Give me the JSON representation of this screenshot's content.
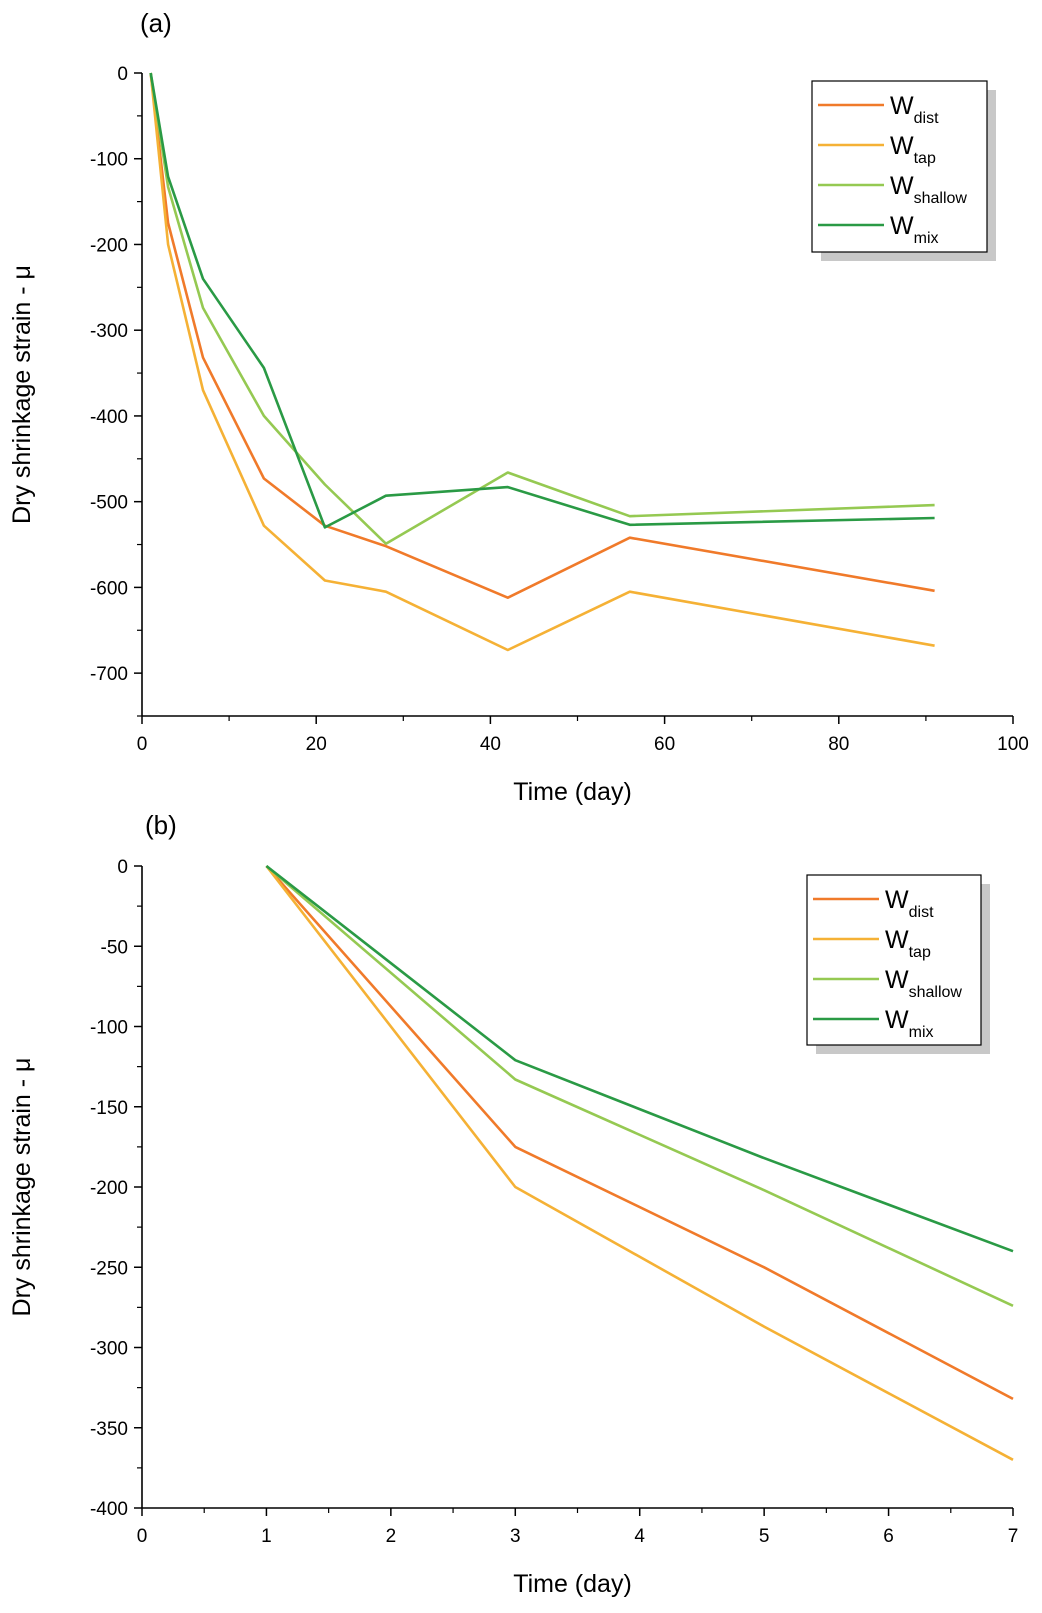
{
  "colors": {
    "W_dist": "#f07a2a",
    "W_tap": "#f5b135",
    "W_shallow": "#95c952",
    "W_mix": "#2a9a45"
  },
  "chart_data": [
    {
      "type": "line",
      "panel_label": "(a)",
      "xlabel": "Time (day)",
      "ylabel": "Dry shrinkage strain - μ",
      "xlim": [
        0,
        100
      ],
      "ylim": [
        -750,
        0
      ],
      "x_ticks": [
        0,
        20,
        40,
        60,
        80,
        100
      ],
      "y_ticks": [
        0,
        -100,
        -200,
        -300,
        -400,
        -500,
        -600,
        -700
      ],
      "legend_position": "top-right",
      "grid": false,
      "x": [
        1,
        3,
        7,
        14,
        21,
        28,
        42,
        56,
        91
      ],
      "series": [
        {
          "name": "W_dist",
          "main": "W",
          "sub": "dist",
          "color_key": "W_dist",
          "values": [
            0,
            -175,
            -332,
            -473,
            -528,
            -552,
            -612,
            -542,
            -604
          ]
        },
        {
          "name": "W_tap",
          "main": "W",
          "sub": "tap",
          "color_key": "W_tap",
          "values": [
            0,
            -200,
            -370,
            -528,
            -592,
            -605,
            -673,
            -605,
            -668
          ]
        },
        {
          "name": "W_shallow",
          "main": "W",
          "sub": "shallow",
          "color_key": "W_shallow",
          "values": [
            0,
            -133,
            -274,
            -400,
            -480,
            -549,
            -466,
            -517,
            -504
          ]
        },
        {
          "name": "W_mix",
          "main": "W",
          "sub": "mix",
          "color_key": "W_mix",
          "values": [
            0,
            -121,
            -240,
            -344,
            -530,
            -493,
            -483,
            -527,
            -519
          ]
        }
      ]
    },
    {
      "type": "line",
      "panel_label": "(b)",
      "xlabel": "Time (day)",
      "ylabel": "Dry shrinkage strain - μ",
      "xlim": [
        0,
        7
      ],
      "ylim": [
        -400,
        0
      ],
      "x_ticks": [
        0,
        1,
        2,
        3,
        4,
        5,
        6,
        7
      ],
      "y_ticks": [
        0,
        -50,
        -100,
        -150,
        -200,
        -250,
        -300,
        -350,
        -400
      ],
      "legend_position": "top-right",
      "grid": false,
      "x": [
        1,
        3,
        5,
        7
      ],
      "series": [
        {
          "name": "W_dist",
          "main": "W",
          "sub": "dist",
          "color_key": "W_dist",
          "values": [
            0,
            -175,
            -250,
            -332
          ]
        },
        {
          "name": "W_tap",
          "main": "W",
          "sub": "tap",
          "color_key": "W_tap",
          "values": [
            0,
            -200,
            -287,
            -370
          ]
        },
        {
          "name": "W_shallow",
          "main": "W",
          "sub": "shallow",
          "color_key": "W_shallow",
          "values": [
            0,
            -133,
            -202,
            -274
          ]
        },
        {
          "name": "W_mix",
          "main": "W",
          "sub": "mix",
          "color_key": "W_mix",
          "values": [
            0,
            -121,
            -182,
            -240
          ]
        }
      ]
    }
  ]
}
